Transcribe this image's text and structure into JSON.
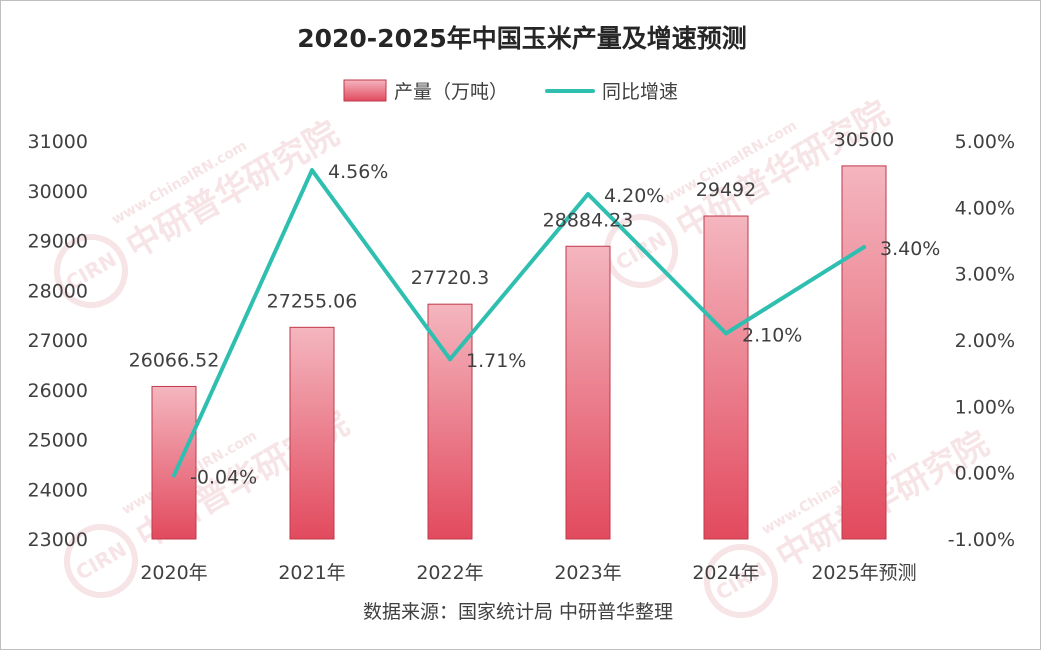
{
  "chart_data": {
    "type": "bar",
    "title": "2020-2025年中国玉米产量及增速预测",
    "categories": [
      "2020年",
      "2021年",
      "2022年",
      "2023年",
      "2024年",
      "2025年预测"
    ],
    "series": [
      {
        "name": "产量（万吨）",
        "type": "bar",
        "axis": "left",
        "values": [
          26066.52,
          27255.06,
          27720.3,
          28884.23,
          29492,
          30500
        ],
        "labels": [
          "26066.52",
          "27255.06",
          "27720.3",
          "28884.23",
          "29492",
          "30500"
        ]
      },
      {
        "name": "同比增速",
        "type": "line",
        "axis": "right",
        "values": [
          -0.04,
          4.56,
          1.71,
          4.2,
          2.1,
          3.4
        ],
        "labels": [
          "-0.04%",
          "4.56%",
          "1.71%",
          "4.20%",
          "2.10%",
          "3.40%"
        ]
      }
    ],
    "y_left": {
      "ylim": [
        23000,
        31000
      ],
      "ticks": [
        "23000",
        "24000",
        "25000",
        "26000",
        "27000",
        "28000",
        "29000",
        "30000",
        "31000"
      ]
    },
    "y_right": {
      "ylim": [
        -1,
        5
      ],
      "ticks": [
        "-1.00%",
        "0.00%",
        "1.00%",
        "2.00%",
        "3.00%",
        "4.00%",
        "5.00%"
      ]
    },
    "grid": false,
    "legend": "top-center",
    "source": "数据来源：国家统计局 中研普华整理",
    "watermark": {
      "logo": "CIRN",
      "name": "中研普华研究院",
      "url": "www.ChinaIRN.com"
    },
    "colors": {
      "bar_top": "#f4b6bf",
      "bar_bottom": "#e24a5e",
      "bar_border": "#c0394b",
      "line": "#2fbfb0",
      "watermark": "#e8b4b8"
    }
  }
}
